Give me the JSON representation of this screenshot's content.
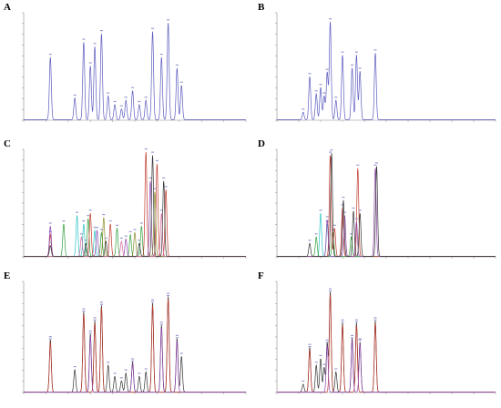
{
  "figure": {
    "panels": [
      {
        "id": "A",
        "label": "A"
      },
      {
        "id": "B",
        "label": "B"
      },
      {
        "id": "C",
        "label": "C"
      },
      {
        "id": "D",
        "label": "D"
      },
      {
        "id": "E",
        "label": "E"
      },
      {
        "id": "F",
        "label": "F"
      }
    ]
  },
  "colors": {
    "axis": "#8a8a8a",
    "trace_blue": "#5b5bbf",
    "trace_black": "#333333",
    "trace_red": "#c0392b",
    "trace_green": "#2e9e3a",
    "trace_cyan": "#2ec4c4",
    "trace_purple": "#8e44ad",
    "trace_olive": "#8c8c2a",
    "trace_pink": "#d46aa0"
  },
  "chart_data": [
    {
      "type": "line",
      "panel": "A",
      "xlim": [
        0,
        50
      ],
      "ylim": [
        0,
        100
      ],
      "series": [
        {
          "color": "#5b5bbf",
          "peaks": [
            [
              6,
              58
            ],
            [
              11.5,
              20
            ],
            [
              13.5,
              72
            ],
            [
              15,
              50
            ],
            [
              16,
              68
            ],
            [
              17.5,
              80
            ],
            [
              19,
              22
            ],
            [
              20.5,
              14
            ],
            [
              22,
              10
            ],
            [
              23,
              18
            ],
            [
              24.5,
              27
            ],
            [
              26,
              14
            ],
            [
              27.5,
              18
            ],
            [
              29,
              82
            ],
            [
              31,
              58
            ],
            [
              32.5,
              90
            ],
            [
              34.5,
              48
            ],
            [
              35.5,
              32
            ]
          ]
        }
      ]
    },
    {
      "type": "line",
      "panel": "B",
      "xlim": [
        0,
        50
      ],
      "ylim": [
        0,
        100
      ],
      "series": [
        {
          "color": "#5b5bbf",
          "peaks": [
            [
              6,
              7
            ],
            [
              7.5,
              40
            ],
            [
              9,
              24
            ],
            [
              10,
              30
            ],
            [
              10.8,
              22
            ],
            [
              11.5,
              44
            ],
            [
              12.2,
              91
            ],
            [
              13.5,
              18
            ],
            [
              15,
              60
            ],
            [
              17.2,
              48
            ],
            [
              18.2,
              60
            ],
            [
              19,
              45
            ],
            [
              22.5,
              62
            ]
          ]
        }
      ]
    },
    {
      "type": "line",
      "panel": "C",
      "xlim": [
        0,
        50
      ],
      "ylim": [
        0,
        100
      ],
      "series": [
        {
          "color": "#2ec4c4",
          "peaks": [
            [
              12,
              38
            ],
            [
              13.5,
              30
            ],
            [
              16,
              24
            ]
          ]
        },
        {
          "color": "#2e9e3a",
          "peaks": [
            [
              9,
              30
            ],
            [
              14.5,
              35
            ],
            [
              17.5,
              22
            ],
            [
              21,
              26
            ],
            [
              24,
              20
            ],
            [
              26.5,
              28
            ]
          ]
        },
        {
          "color": "#c0392b",
          "peaks": [
            [
              6,
              20
            ],
            [
              15,
              40
            ],
            [
              19.5,
              30
            ],
            [
              27.5,
              97
            ],
            [
              30,
              86
            ],
            [
              32,
              62
            ]
          ]
        },
        {
          "color": "#8e44ad",
          "peaks": [
            [
              6,
              28
            ],
            [
              16.5,
              24
            ],
            [
              23,
              16
            ],
            [
              28.5,
              70
            ]
          ]
        },
        {
          "color": "#8c8c2a",
          "peaks": [
            [
              18,
              36
            ],
            [
              25,
              22
            ],
            [
              29.5,
              60
            ]
          ]
        },
        {
          "color": "#d46aa0",
          "peaks": [
            [
              13,
              18
            ],
            [
              22,
              14
            ],
            [
              31,
              40
            ]
          ]
        },
        {
          "color": "#333333",
          "peaks": [
            [
              6,
              10
            ],
            [
              14,
              12
            ],
            [
              18.5,
              14
            ],
            [
              26,
              12
            ],
            [
              29,
              94
            ],
            [
              31.5,
              70
            ]
          ]
        }
      ]
    },
    {
      "type": "line",
      "panel": "D",
      "xlim": [
        0,
        50
      ],
      "ylim": [
        0,
        100
      ],
      "series": [
        {
          "color": "#2ec4c4",
          "peaks": [
            [
              10,
              40
            ],
            [
              11.5,
              30
            ]
          ]
        },
        {
          "color": "#2e9e3a",
          "peaks": [
            [
              9,
              18
            ],
            [
              12.8,
              22
            ],
            [
              17,
              18
            ]
          ]
        },
        {
          "color": "#c0392b",
          "peaks": [
            [
              12.2,
              94
            ],
            [
              13.2,
              26
            ],
            [
              15,
              45
            ],
            [
              18.5,
              82
            ]
          ]
        },
        {
          "color": "#8e44ad",
          "peaks": [
            [
              11.5,
              34
            ],
            [
              15.5,
              38
            ],
            [
              18.2,
              32
            ],
            [
              22.5,
              82
            ]
          ]
        },
        {
          "color": "#333333",
          "peaks": [
            [
              7.5,
              12
            ],
            [
              12.5,
              96
            ],
            [
              15.2,
              52
            ],
            [
              17.5,
              42
            ],
            [
              19,
              40
            ],
            [
              22.8,
              84
            ]
          ]
        }
      ]
    },
    {
      "type": "line",
      "panel": "E",
      "xlim": [
        0,
        50
      ],
      "ylim": [
        0,
        100
      ],
      "series": [
        {
          "color": "#333333",
          "peaks": [
            [
              6,
              47
            ],
            [
              11.5,
              20
            ],
            [
              13.5,
              72
            ],
            [
              15,
              52
            ],
            [
              16,
              64
            ],
            [
              17.5,
              78
            ],
            [
              19,
              24
            ],
            [
              20.5,
              14
            ],
            [
              22,
              10
            ],
            [
              23,
              17
            ],
            [
              24.5,
              27
            ],
            [
              26,
              14
            ],
            [
              27.5,
              18
            ],
            [
              29,
              80
            ],
            [
              31,
              60
            ],
            [
              32.5,
              86
            ],
            [
              34.5,
              48
            ],
            [
              35.5,
              32
            ]
          ]
        },
        {
          "color": "#c0392b",
          "peaks": [
            [
              6,
              45
            ],
            [
              13.5,
              70
            ],
            [
              16,
              62
            ],
            [
              17.5,
              76
            ],
            [
              29,
              78
            ],
            [
              32.5,
              84
            ]
          ]
        },
        {
          "color": "#8e44ad",
          "peaks": [
            [
              15,
              50
            ],
            [
              24.5,
              25
            ],
            [
              31,
              58
            ],
            [
              34.5,
              46
            ]
          ]
        }
      ]
    },
    {
      "type": "line",
      "panel": "F",
      "xlim": [
        0,
        50
      ],
      "ylim": [
        0,
        100
      ],
      "series": [
        {
          "color": "#333333",
          "peaks": [
            [
              6,
              7
            ],
            [
              7.5,
              40
            ],
            [
              9,
              24
            ],
            [
              10,
              30
            ],
            [
              10.8,
              22
            ],
            [
              11.5,
              44
            ],
            [
              12.2,
              90
            ],
            [
              13.5,
              18
            ],
            [
              15,
              62
            ],
            [
              17.2,
              48
            ],
            [
              18.2,
              62
            ],
            [
              19,
              45
            ],
            [
              22.5,
              64
            ]
          ]
        },
        {
          "color": "#c0392b",
          "peaks": [
            [
              7.5,
              38
            ],
            [
              12.2,
              88
            ],
            [
              15,
              60
            ],
            [
              18.2,
              60
            ],
            [
              22.5,
              62
            ]
          ]
        },
        {
          "color": "#8e44ad",
          "peaks": [
            [
              11.5,
              42
            ],
            [
              17.2,
              46
            ],
            [
              19,
              44
            ]
          ]
        }
      ]
    }
  ]
}
